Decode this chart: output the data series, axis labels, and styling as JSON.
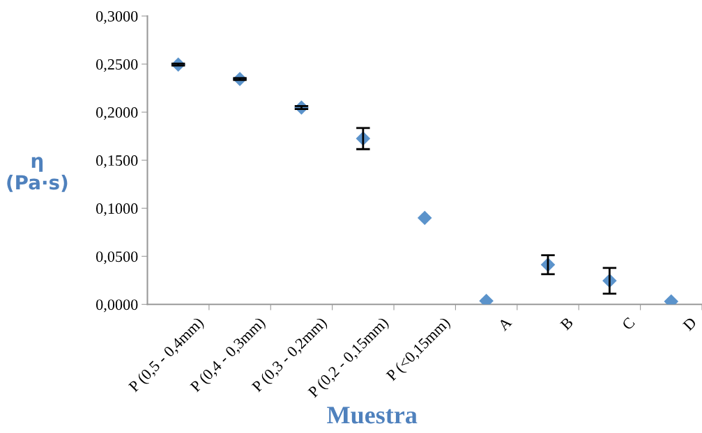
{
  "chart_data": {
    "type": "scatter",
    "xlabel": "Muestra",
    "ylabel": "η\n(Pa·s)",
    "categories": [
      "P (0,5 - 0,4mm)",
      "P (0,4 - 0,3mm)",
      "P (0,3 - 0,2mm)",
      "P (0,2 - 0,15mm)",
      "P (<0,15mm)",
      "A",
      "B",
      "C",
      "D"
    ],
    "values": [
      0.2495,
      0.2345,
      0.2048,
      0.1725,
      0.09,
      0.0036,
      0.0413,
      0.0246,
      0.003
    ],
    "errors": [
      0.001,
      0.001,
      0.0015,
      0.011,
      null,
      null,
      0.0098,
      0.0134,
      null
    ],
    "color": "#5b93cb",
    "marker": "diamond",
    "grid": false,
    "legend": false,
    "ylim": [
      0,
      0.3
    ],
    "yticks": [
      {
        "value": 0,
        "label": "0,0000"
      },
      {
        "value": 0.05,
        "label": "0,0500"
      },
      {
        "value": 0.1,
        "label": "0,1000"
      },
      {
        "value": 0.15,
        "label": "0,1500"
      },
      {
        "value": 0.2,
        "label": "0,2000"
      },
      {
        "value": 0.25,
        "label": "0,2500"
      },
      {
        "value": 0.3,
        "label": "0,3000"
      }
    ]
  }
}
